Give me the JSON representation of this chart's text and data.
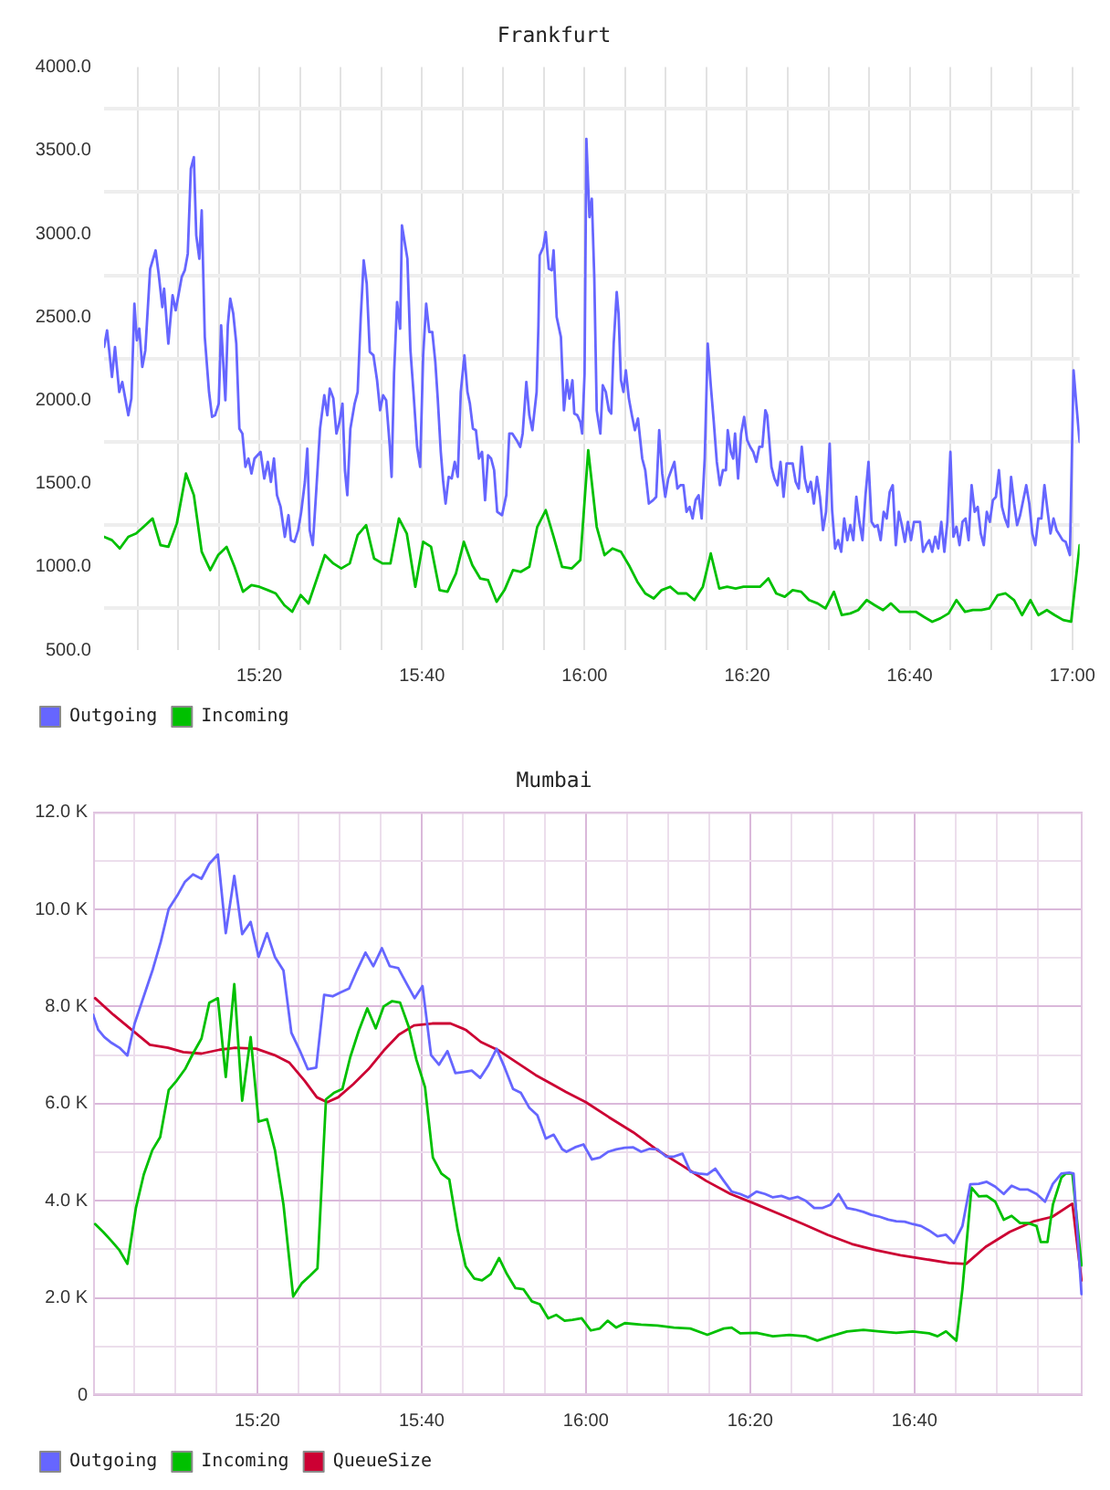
{
  "chart_data": [
    {
      "type": "line",
      "title": "Frankfurt",
      "xlim": [
        15.0149,
        17.0149
      ],
      "xticks": [
        {
          "value": 15.0833,
          "label": null
        },
        {
          "value": 15.1667,
          "label": null
        },
        {
          "value": 15.25,
          "label": null
        },
        {
          "value": 15.3333,
          "label": "15:20"
        },
        {
          "value": 15.4167,
          "label": null
        },
        {
          "value": 15.5,
          "label": null
        },
        {
          "value": 15.5833,
          "label": null
        },
        {
          "value": 15.6667,
          "label": "15:40"
        },
        {
          "value": 15.75,
          "label": null
        },
        {
          "value": 15.8333,
          "label": null
        },
        {
          "value": 15.9167,
          "label": null
        },
        {
          "value": 16,
          "label": "16:00"
        },
        {
          "value": 16.0833,
          "label": null
        },
        {
          "value": 16.1667,
          "label": null
        },
        {
          "value": 16.25,
          "label": null
        },
        {
          "value": 16.3333,
          "label": "16:20"
        },
        {
          "value": 16.4167,
          "label": null
        },
        {
          "value": 16.5,
          "label": null
        },
        {
          "value": 16.5833,
          "label": null
        },
        {
          "value": 16.6667,
          "label": "16:40"
        },
        {
          "value": 16.75,
          "label": null
        },
        {
          "value": 16.8333,
          "label": null
        },
        {
          "value": 16.9167,
          "label": null
        },
        {
          "value": 17,
          "label": "17:00"
        }
      ],
      "ylim": [
        500,
        4000
      ],
      "yticks": [
        {
          "value": 500,
          "label": "500.0"
        },
        {
          "value": 750,
          "label": null
        },
        {
          "value": 1000,
          "label": "1000.0"
        },
        {
          "value": 1250,
          "label": null
        },
        {
          "value": 1500,
          "label": "1500.0"
        },
        {
          "value": 1750,
          "label": null
        },
        {
          "value": 2000,
          "label": "2000.0"
        },
        {
          "value": 2250,
          "label": null
        },
        {
          "value": 2500,
          "label": "2500.0"
        },
        {
          "value": 2750,
          "label": null
        },
        {
          "value": 3000,
          "label": "3000.0"
        },
        {
          "value": 3250,
          "label": null
        },
        {
          "value": 3500,
          "label": "3500.0"
        },
        {
          "value": 3750,
          "label": null
        },
        {
          "value": 4000,
          "label": "4000.0"
        }
      ],
      "grid": true,
      "legend": "bottom left",
      "marker": "none",
      "line_style": "solid",
      "series": [
        {
          "name": "Outgoing",
          "color": "#6666ff",
          "x": [
            15.0149,
            15.0211,
            15.0311,
            15.0373,
            15.046,
            15.0522,
            15.0584,
            15.0646,
            15.0709,
            15.0771,
            15.0821,
            15.087,
            15.0933,
            15.0995,
            15.1094,
            15.1206,
            15.1268,
            15.1343,
            15.138,
            15.1467,
            15.1554,
            15.1617,
            15.1741,
            15.1803,
            15.1865,
            15.1928,
            15.199,
            15.2039,
            15.2102,
            15.2151,
            15.2214,
            15.2301,
            15.2363,
            15.2425,
            15.25,
            15.2549,
            15.2636,
            15.2686,
            15.2736,
            15.2798,
            15.286,
            15.2923,
            15.2985,
            15.3047,
            15.3109,
            15.3171,
            15.3233,
            15.3358,
            15.3433,
            15.3507,
            15.3569,
            15.3632,
            15.3694,
            15.3768,
            15.3855,
            15.393,
            15.398,
            15.4054,
            15.4129,
            15.4191,
            15.4266,
            15.4316,
            15.4365,
            15.4428,
            15.4502,
            15.4577,
            15.4664,
            15.4726,
            15.4776,
            15.485,
            15.4913,
            15.4975,
            15.5037,
            15.5087,
            15.5136,
            15.5199,
            15.5286,
            15.5348,
            15.541,
            15.5472,
            15.5534,
            15.5597,
            15.5671,
            15.5746,
            15.5808,
            15.587,
            15.5933,
            15.6007,
            15.6044,
            15.6094,
            15.6156,
            15.6219,
            15.6256,
            15.6306,
            15.6368,
            15.643,
            15.6492,
            15.6567,
            15.6629,
            15.6691,
            15.6753,
            15.6816,
            15.6878,
            15.694,
            15.699,
            15.7052,
            15.7102,
            15.7151,
            15.7214,
            15.7276,
            15.7338,
            15.74,
            15.7462,
            15.7537,
            15.7599,
            15.7649,
            15.7711,
            15.7773,
            15.7835,
            15.7898,
            15.796,
            15.8022,
            15.8084,
            15.8146,
            15.8209,
            15.8308,
            15.8395,
            15.8457,
            15.852,
            15.8607,
            15.8681,
            15.8731,
            15.8806,
            15.8868,
            15.893,
            15.9017,
            15.9054,
            15.9079,
            15.9154,
            15.9204,
            15.9266,
            15.9328,
            15.9365,
            15.9428,
            15.9515,
            15.9577,
            15.9639,
            15.9689,
            15.9751,
            15.9789,
            15.9851,
            15.9913,
            15.995,
            16,
            16.0037,
            16.01,
            16.0149,
            16.0199,
            16.0249,
            16.0323,
            16.0373,
            16.0435,
            16.0498,
            16.0547,
            16.0597,
            16.0659,
            16.0697,
            16.0746,
            16.0796,
            16.0846,
            16.0908,
            16.097,
            16.1032,
            16.1095,
            16.1182,
            16.1244,
            16.1318,
            16.1405,
            16.1468,
            16.153,
            16.1592,
            16.1654,
            16.1716,
            16.1841,
            16.1903,
            16.1965,
            16.2027,
            16.209,
            16.2152,
            16.2214,
            16.2276,
            16.2338,
            16.24,
            16.2463,
            16.2525,
            16.2587,
            16.2649,
            16.2711,
            16.2774,
            16.2836,
            16.2898,
            16.2935,
            16.2998,
            16.3047,
            16.3085,
            16.3147,
            16.3209,
            16.3271,
            16.3333,
            16.3396,
            16.3458,
            16.352,
            16.3582,
            16.3644,
            16.3706,
            16.3744,
            16.3831,
            16.3893,
            16.3955,
            16.4017,
            16.408,
            16.4142,
            16.4266,
            16.4328,
            16.4391,
            16.4453,
            16.4515,
            16.4577,
            16.4639,
            16.4701,
            16.4764,
            16.4826,
            16.4888,
            16.495,
            16.5025,
            16.5075,
            16.5137,
            16.5199,
            16.5261,
            16.5323,
            16.5386,
            16.5448,
            16.551,
            16.5572,
            16.5634,
            16.5697,
            16.5759,
            16.5821,
            16.5883,
            16.5945,
            16.6007,
            16.607,
            16.6132,
            16.6194,
            16.6256,
            16.6318,
            16.6381,
            16.6443,
            16.6505,
            16.6567,
            16.6629,
            16.6692,
            16.6754,
            16.6878,
            16.694,
            16.7002,
            16.7065,
            16.7127,
            16.7189,
            16.7251,
            16.7313,
            16.7376,
            16.7438,
            16.75,
            16.7562,
            16.7624,
            16.7687,
            16.7749,
            16.7811,
            16.7873,
            16.7935,
            16.7998,
            16.806,
            16.8122,
            16.8184,
            16.8246,
            16.8308,
            16.8371,
            16.8433,
            16.8495,
            16.8557,
            16.8619,
            16.8682,
            16.8744,
            16.8806,
            16.8868,
            16.893,
            16.9055,
            16.9117,
            16.9179,
            16.9241,
            16.9303,
            16.9366,
            16.9428,
            16.949,
            16.9552,
            16.9614,
            16.9677,
            16.9801,
            16.9863,
            16.995,
            17.0025,
            17.0075,
            17.0149
          ],
          "values": [
            2320,
            2420,
            2140,
            2320,
            2050,
            2110,
            2010,
            1910,
            2010,
            2580,
            2360,
            2430,
            2200,
            2300,
            2790,
            2900,
            2760,
            2560,
            2670,
            2340,
            2630,
            2540,
            2740,
            2780,
            2880,
            3390,
            3460,
            2990,
            2850,
            3140,
            2380,
            2050,
            1900,
            1910,
            1980,
            2450,
            2000,
            2450,
            2610,
            2520,
            2340,
            1830,
            1800,
            1600,
            1650,
            1560,
            1650,
            1690,
            1530,
            1630,
            1510,
            1650,
            1430,
            1360,
            1180,
            1310,
            1160,
            1150,
            1220,
            1330,
            1510,
            1710,
            1220,
            1130,
            1470,
            1830,
            2030,
            1910,
            2070,
            2010,
            1800,
            1870,
            1980,
            1580,
            1430,
            1830,
            1980,
            2050,
            2490,
            2840,
            2700,
            2290,
            2270,
            2120,
            1940,
            2030,
            2000,
            1720,
            1540,
            2160,
            2590,
            2430,
            3050,
            2960,
            2850,
            2300,
            2050,
            1720,
            1600,
            2270,
            2580,
            2410,
            2410,
            2230,
            2010,
            1690,
            1510,
            1380,
            1540,
            1530,
            1630,
            1540,
            2050,
            2270,
            2050,
            1980,
            1830,
            1820,
            1650,
            1690,
            1400,
            1670,
            1650,
            1580,
            1330,
            1310,
            1430,
            1800,
            1800,
            1760,
            1720,
            1800,
            2110,
            1910,
            1820,
            2050,
            2450,
            2870,
            2920,
            3010,
            2790,
            2780,
            2900,
            2500,
            2380,
            1940,
            2120,
            2010,
            2120,
            1920,
            1910,
            1870,
            1800,
            2160,
            3570,
            3100,
            3210,
            2740,
            1940,
            1800,
            2090,
            2050,
            1940,
            1920,
            2340,
            2650,
            2520,
            2120,
            2050,
            2180,
            2010,
            1910,
            1820,
            1890,
            1650,
            1580,
            1380,
            1400,
            1420,
            1820,
            1560,
            1420,
            1530,
            1630,
            1470,
            1490,
            1490,
            1330,
            1360,
            1290,
            1400,
            1430,
            1290,
            1650,
            2340,
            2090,
            1870,
            1630,
            1490,
            1580,
            1580,
            1820,
            1690,
            1650,
            1800,
            1530,
            1800,
            1900,
            1760,
            1720,
            1690,
            1630,
            1720,
            1720,
            1940,
            1910,
            1600,
            1530,
            1490,
            1630,
            1420,
            1620,
            1620,
            1510,
            1470,
            1720,
            1530,
            1450,
            1510,
            1380,
            1540,
            1420,
            1220,
            1330,
            1740,
            1340,
            1110,
            1160,
            1090,
            1290,
            1160,
            1250,
            1160,
            1420,
            1270,
            1160,
            1430,
            1630,
            1270,
            1240,
            1250,
            1160,
            1330,
            1290,
            1450,
            1490,
            1130,
            1330,
            1250,
            1150,
            1270,
            1160,
            1270,
            1270,
            1090,
            1130,
            1160,
            1090,
            1180,
            1110,
            1270,
            1090,
            1270,
            1690,
            1180,
            1240,
            1130,
            1270,
            1290,
            1160,
            1490,
            1330,
            1360,
            1200,
            1130,
            1330,
            1270,
            1400,
            1420,
            1580,
            1360,
            1290,
            1240,
            1540,
            1380,
            1250,
            1310,
            1490,
            1380,
            1200,
            1130,
            1290,
            1290,
            1490,
            1340,
            1200,
            1290,
            1220,
            1160,
            1150,
            1070,
            2180,
            2000,
            1750
          ]
        },
        {
          "name": "Incoming",
          "color": "#00c000",
          "x": [
            15.0149,
            15.0311,
            15.0472,
            15.0646,
            15.0808,
            15.0995,
            15.1144,
            15.1306,
            15.1467,
            15.1641,
            15.1828,
            15.199,
            15.2151,
            15.2326,
            15.2487,
            15.2661,
            15.2823,
            15.2997,
            15.3171,
            15.3333,
            15.3507,
            15.3669,
            15.3843,
            15.4005,
            15.4179,
            15.434,
            15.4515,
            15.4676,
            15.485,
            15.5012,
            15.5186,
            15.5348,
            15.5522,
            15.5684,
            15.5858,
            15.602,
            15.6194,
            15.6355,
            15.653,
            15.6691,
            15.6853,
            15.7027,
            15.7189,
            15.7363,
            15.7525,
            15.7699,
            15.786,
            15.8022,
            15.8196,
            15.8358,
            15.8532,
            15.8694,
            15.8868,
            15.903,
            15.9204,
            15.9365,
            15.9539,
            15.9739,
            15.9913,
            16.0075,
            16.0249,
            16.041,
            16.0572,
            16.0746,
            16.0908,
            16.1082,
            16.1244,
            16.1418,
            16.158,
            16.1754,
            16.1915,
            16.209,
            16.2251,
            16.2425,
            16.2587,
            16.2761,
            16.2923,
            16.3097,
            16.3259,
            16.3433,
            16.3595,
            16.3769,
            16.393,
            16.4104,
            16.4266,
            16.444,
            16.4602,
            16.4776,
            16.4938,
            16.5112,
            16.5274,
            16.5448,
            16.5609,
            16.5784,
            16.5945,
            16.6119,
            16.6281,
            16.6455,
            16.6617,
            16.6791,
            16.6953,
            16.7127,
            16.7289,
            16.7463,
            16.7624,
            16.7799,
            16.796,
            16.8134,
            16.8296,
            16.847,
            16.8632,
            16.8806,
            16.8968,
            16.9142,
            16.9303,
            16.9478,
            16.9639,
            16.9813,
            16.9975,
            17.0149
          ],
          "values": [
            1180,
            1160,
            1110,
            1180,
            1200,
            1250,
            1290,
            1130,
            1120,
            1260,
            1560,
            1430,
            1090,
            980,
            1070,
            1120,
            1000,
            850,
            890,
            880,
            860,
            840,
            770,
            730,
            830,
            780,
            930,
            1070,
            1020,
            990,
            1020,
            1190,
            1250,
            1050,
            1020,
            1020,
            1290,
            1200,
            880,
            1150,
            1120,
            860,
            850,
            960,
            1150,
            1010,
            930,
            920,
            790,
            860,
            980,
            970,
            1000,
            1240,
            1340,
            1180,
            1000,
            990,
            1040,
            1700,
            1240,
            1070,
            1110,
            1090,
            1010,
            910,
            840,
            810,
            860,
            880,
            840,
            840,
            800,
            880,
            1080,
            870,
            880,
            870,
            880,
            880,
            880,
            930,
            840,
            820,
            860,
            850,
            800,
            780,
            750,
            850,
            710,
            720,
            740,
            800,
            770,
            740,
            780,
            730,
            730,
            730,
            700,
            670,
            690,
            720,
            800,
            730,
            740,
            740,
            750,
            830,
            840,
            800,
            710,
            800,
            710,
            740,
            710,
            680,
            670,
            1130
          ]
        }
      ]
    },
    {
      "type": "line",
      "title": "Mumbai",
      "xlim": [
        15,
        17.008
      ],
      "xticks": [
        {
          "value": 15.0833,
          "label": null
        },
        {
          "value": 15.1667,
          "label": null
        },
        {
          "value": 15.25,
          "label": null
        },
        {
          "value": 15.3333,
          "label": "15:20"
        },
        {
          "value": 15.4167,
          "label": null
        },
        {
          "value": 15.5,
          "label": null
        },
        {
          "value": 15.5833,
          "label": null
        },
        {
          "value": 15.6667,
          "label": "15:40"
        },
        {
          "value": 15.75,
          "label": null
        },
        {
          "value": 15.8333,
          "label": null
        },
        {
          "value": 15.9167,
          "label": null
        },
        {
          "value": 16,
          "label": "16:00"
        },
        {
          "value": 16.0833,
          "label": null
        },
        {
          "value": 16.1667,
          "label": null
        },
        {
          "value": 16.25,
          "label": null
        },
        {
          "value": 16.3333,
          "label": "16:20"
        },
        {
          "value": 16.4167,
          "label": null
        },
        {
          "value": 16.5,
          "label": null
        },
        {
          "value": 16.5833,
          "label": null
        },
        {
          "value": 16.6667,
          "label": "16:40"
        },
        {
          "value": 16.75,
          "label": null
        },
        {
          "value": 16.8333,
          "label": null
        },
        {
          "value": 16.9167,
          "label": null
        }
      ],
      "ylim": [
        0,
        12000
      ],
      "yticks": [
        0,
        {
          "value": 1000,
          "label": null
        },
        {
          "value": 2000,
          "label": "2.0 K"
        },
        {
          "value": 3000,
          "label": null
        },
        {
          "value": 4000,
          "label": "4.0 K"
        },
        {
          "value": 5000,
          "label": null
        },
        {
          "value": 6000,
          "label": "6.0 K"
        },
        {
          "value": 7000,
          "label": null
        },
        {
          "value": 8000,
          "label": "8.0 K"
        },
        {
          "value": 9000,
          "label": null
        },
        {
          "value": 10000,
          "label": "10.0 K"
        },
        {
          "value": 11000,
          "label": null
        },
        {
          "value": 12000,
          "label": "12.0 K"
        }
      ],
      "grid": true,
      "legend": "bottom left",
      "marker": "none",
      "line_style": "solid",
      "series": [
        {
          "name": "Outgoing",
          "color": "#6666ff",
          "x": [
            15,
            15.0104,
            15.0227,
            15.0375,
            15.0535,
            15.0696,
            15.0843,
            15.1028,
            15.1213,
            15.1373,
            15.1534,
            15.1706,
            15.1866,
            15.2027,
            15.2199,
            15.2359,
            15.2532,
            15.2692,
            15.2865,
            15.3025,
            15.3197,
            15.3358,
            15.353,
            15.369,
            15.3863,
            15.4023,
            15.4196,
            15.4356,
            15.4528,
            15.4689,
            15.4861,
            15.5021,
            15.5194,
            15.5354,
            15.5527,
            15.5687,
            15.586,
            15.602,
            15.6192,
            15.6352,
            15.6525,
            15.6685,
            15.6858,
            15.7018,
            15.7191,
            15.7351,
            15.7523,
            15.7684,
            15.7856,
            15.8016,
            15.8189,
            15.8349,
            15.8522,
            15.8682,
            15.8854,
            15.9015,
            15.9187,
            15.9347,
            15.952,
            15.9606,
            15.9778,
            15.9951,
            16.0123,
            16.0283,
            16.0456,
            16.0616,
            16.0789,
            16.0961,
            16.1122,
            16.1294,
            16.1454,
            16.1627,
            16.1787,
            16.196,
            16.212,
            16.2292,
            16.2465,
            16.2625,
            16.2798,
            16.2958,
            16.313,
            16.3291,
            16.3463,
            16.3636,
            16.3796,
            16.3968,
            16.4129,
            16.4301,
            16.4461,
            16.4634,
            16.4794,
            16.4967,
            16.5127,
            16.53,
            16.546,
            16.5632,
            16.5792,
            16.5965,
            16.6137,
            16.6298,
            16.647,
            16.6631,
            16.6803,
            16.6963,
            16.7136,
            16.7308,
            16.7469,
            16.7641,
            16.7801,
            16.7974,
            16.8134,
            16.8307,
            16.8479,
            16.8639,
            16.8812,
            16.8972,
            16.9145,
            16.9317,
            16.9477,
            16.965,
            16.981,
            16.9896,
            17.0057
          ],
          "values": [
            7830,
            7520,
            7370,
            7250,
            7150,
            6990,
            7650,
            8210,
            8770,
            9330,
            10010,
            10280,
            10570,
            10720,
            10630,
            10940,
            11130,
            9510,
            10690,
            9490,
            9740,
            9020,
            9510,
            9020,
            8740,
            7460,
            7090,
            6710,
            6740,
            8240,
            8210,
            8290,
            8370,
            8740,
            9110,
            8830,
            9200,
            8830,
            8790,
            8490,
            8170,
            8420,
            7000,
            6800,
            7080,
            6630,
            6650,
            6680,
            6530,
            6780,
            7130,
            6750,
            6300,
            6220,
            5910,
            5760,
            5280,
            5360,
            5060,
            5010,
            5100,
            5160,
            4850,
            4890,
            5010,
            5060,
            5090,
            5100,
            5010,
            5070,
            5060,
            4910,
            4910,
            4970,
            4600,
            4560,
            4540,
            4660,
            4410,
            4190,
            4140,
            4070,
            4190,
            4140,
            4070,
            4100,
            4040,
            4080,
            4000,
            3850,
            3850,
            3920,
            4140,
            3850,
            3820,
            3770,
            3710,
            3670,
            3610,
            3580,
            3570,
            3520,
            3480,
            3390,
            3270,
            3300,
            3130,
            3480,
            4340,
            4350,
            4390,
            4290,
            4140,
            4310,
            4230,
            4230,
            4140,
            3980,
            4350,
            4560,
            4580,
            4560,
            2080
          ]
        },
        {
          "name": "Incoming",
          "color": "#00c000",
          "x": [
            15.0042,
            15.0203,
            15.0375,
            15.0535,
            15.0696,
            15.0868,
            15.1028,
            15.1201,
            15.1361,
            15.1534,
            15.1694,
            15.1866,
            15.2027,
            15.2199,
            15.2359,
            15.2532,
            15.2692,
            15.2865,
            15.3025,
            15.3197,
            15.3358,
            15.353,
            15.369,
            15.3863,
            15.406,
            15.4233,
            15.4393,
            15.4553,
            15.4726,
            15.4886,
            15.5058,
            15.5219,
            15.5391,
            15.5564,
            15.5736,
            15.5896,
            15.6069,
            15.6229,
            15.6402,
            15.6562,
            15.6735,
            15.6895,
            15.7067,
            15.7228,
            15.74,
            15.756,
            15.7733,
            15.7893,
            15.8066,
            15.8238,
            15.8398,
            15.8571,
            15.8731,
            15.8904,
            15.9064,
            15.9236,
            15.9397,
            15.9569,
            15.9729,
            15.9914,
            16.0099,
            16.0283,
            16.0444,
            16.0616,
            16.0789,
            16.1122,
            16.1454,
            16.1787,
            16.212,
            16.2465,
            16.2798,
            16.2958,
            16.313,
            16.3463,
            16.3796,
            16.4129,
            16.4461,
            16.4696,
            16.4967,
            16.53,
            16.5632,
            16.5965,
            16.6298,
            16.6631,
            16.6963,
            16.7136,
            16.7308,
            16.7518,
            16.7641,
            16.7826,
            16.7974,
            16.8134,
            16.8307,
            16.8479,
            16.8639,
            16.8812,
            16.8972,
            16.9145,
            16.9231,
            16.9367,
            16.9477,
            16.965,
            16.9736,
            16.9872,
            17.0057
          ],
          "values": [
            3520,
            3360,
            3170,
            2980,
            2700,
            3850,
            4540,
            5040,
            5310,
            6280,
            6470,
            6710,
            7030,
            7340,
            8080,
            8170,
            6550,
            8460,
            6060,
            7370,
            5630,
            5680,
            5040,
            3920,
            2030,
            2300,
            2450,
            2610,
            6090,
            6220,
            6300,
            6960,
            7500,
            7960,
            7550,
            8000,
            8110,
            8080,
            7590,
            6900,
            6340,
            4890,
            4560,
            4440,
            3390,
            2650,
            2400,
            2360,
            2490,
            2820,
            2490,
            2200,
            2180,
            1930,
            1870,
            1580,
            1650,
            1530,
            1550,
            1580,
            1330,
            1370,
            1530,
            1390,
            1480,
            1450,
            1430,
            1390,
            1370,
            1240,
            1370,
            1390,
            1270,
            1280,
            1210,
            1240,
            1210,
            1120,
            1210,
            1310,
            1340,
            1310,
            1280,
            1310,
            1270,
            1210,
            1310,
            1120,
            2180,
            4270,
            4090,
            4100,
            3980,
            3610,
            3690,
            3540,
            3540,
            3480,
            3150,
            3150,
            3920,
            4480,
            4560,
            4560,
            2670
          ]
        },
        {
          "name": "QueueSize",
          "color": "#cc0033",
          "x": [
            15.0042,
            15.0412,
            15.0782,
            15.1152,
            15.1521,
            15.1829,
            15.2199,
            15.2569,
            15.2877,
            15.3308,
            15.3678,
            15.3986,
            15.4294,
            15.4541,
            15.475,
            15.4972,
            15.528,
            15.5588,
            15.5896,
            15.6205,
            15.6513,
            15.6882,
            15.7252,
            15.756,
            15.7868,
            15.8238,
            15.8608,
            15.8978,
            15.9347,
            15.9594,
            16,
            16.0468,
            16.0961,
            16.1454,
            16.1947,
            16.244,
            16.2933,
            16.3426,
            16.3919,
            16.4412,
            16.4905,
            16.5398,
            16.5891,
            16.6384,
            16.6877,
            16.737,
            16.7715,
            16.811,
            16.8602,
            16.9095,
            16.9465,
            16.9872,
            17.0057
          ],
          "values": [
            8170,
            7830,
            7520,
            7210,
            7150,
            7060,
            7030,
            7110,
            7150,
            7130,
            7000,
            6840,
            6470,
            6130,
            6030,
            6130,
            6400,
            6710,
            7090,
            7420,
            7610,
            7650,
            7650,
            7520,
            7270,
            7090,
            6840,
            6590,
            6380,
            6240,
            6030,
            5720,
            5410,
            5040,
            4730,
            4410,
            4140,
            3940,
            3730,
            3520,
            3300,
            3110,
            2980,
            2880,
            2800,
            2720,
            2700,
            3050,
            3360,
            3580,
            3670,
            3940,
            2360
          ]
        }
      ]
    }
  ]
}
